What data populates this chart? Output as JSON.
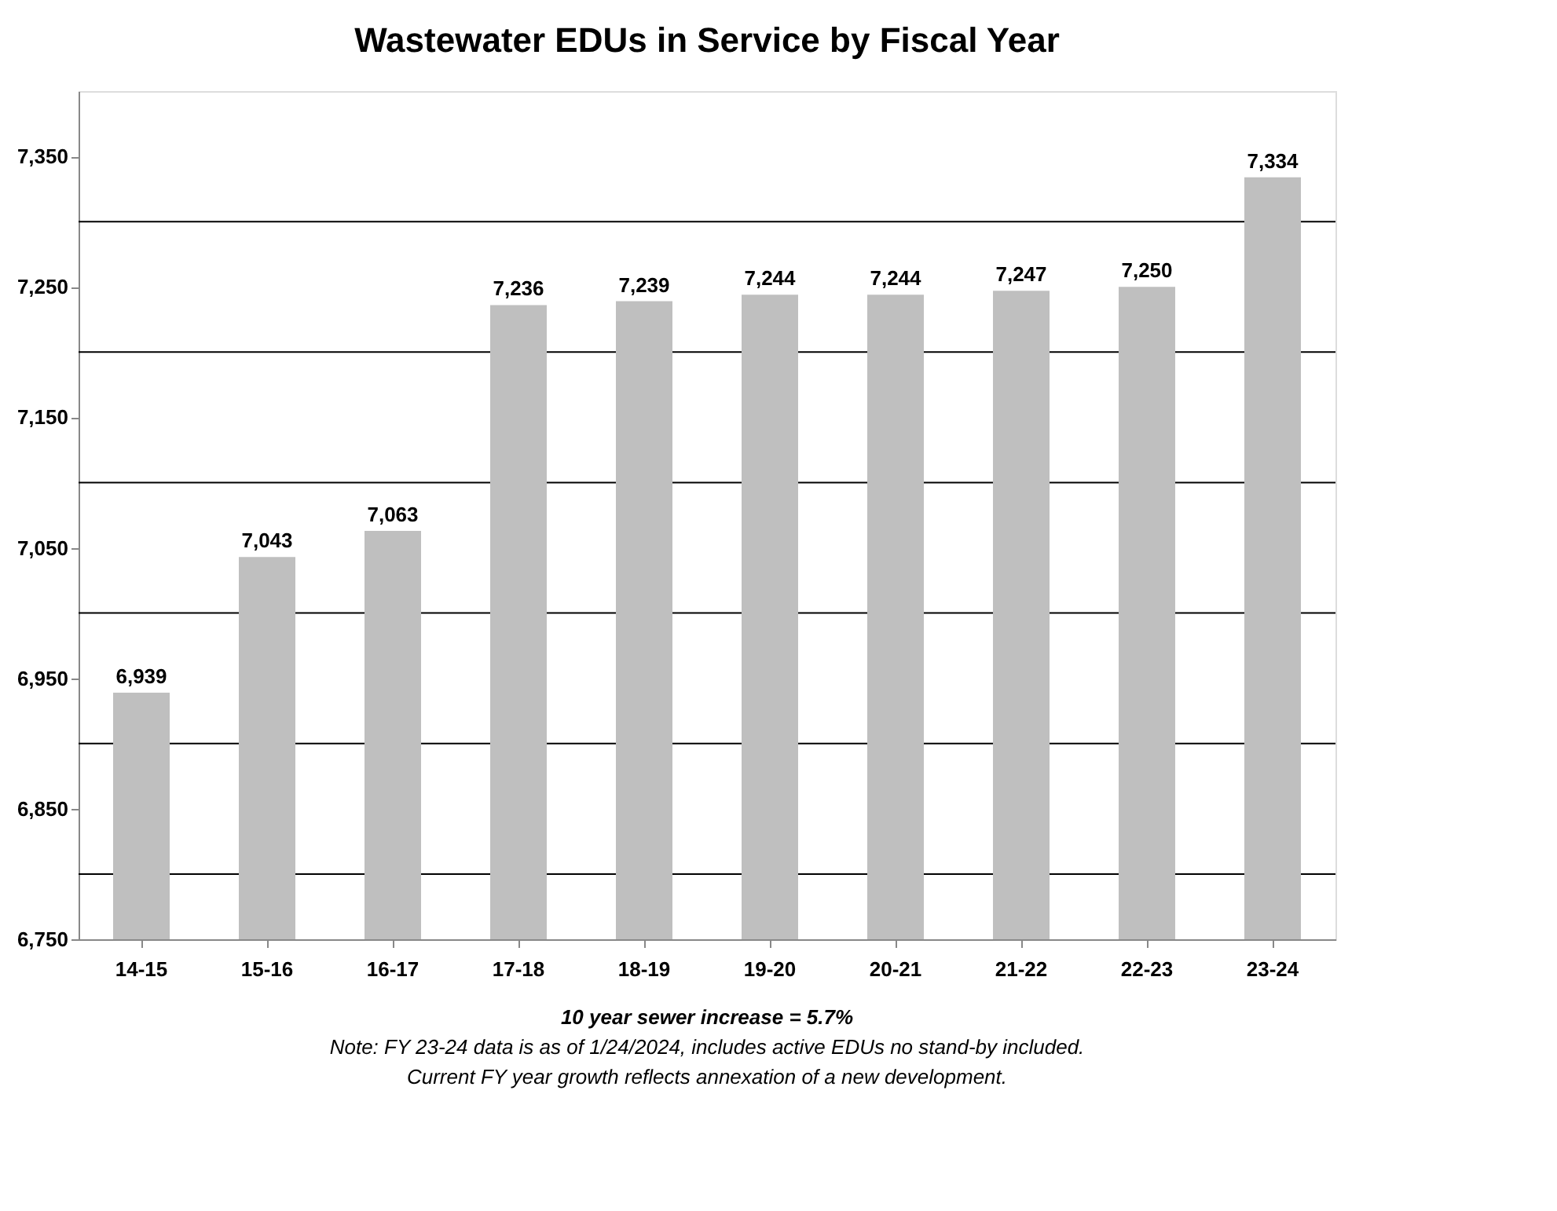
{
  "chart_data": {
    "type": "bar",
    "title": "Wastewater EDUs in Service by Fiscal Year",
    "categories": [
      "14-15",
      "15-16",
      "16-17",
      "17-18",
      "18-19",
      "19-20",
      "20-21",
      "21-22",
      "22-23",
      "23-24"
    ],
    "values": [
      6939,
      7043,
      7063,
      7236,
      7239,
      7244,
      7244,
      7247,
      7250,
      7334
    ],
    "value_labels": [
      "6,939",
      "7,043",
      "7,063",
      "7,236",
      "7,239",
      "7,244",
      "7,244",
      "7,247",
      "7,250",
      "7,334"
    ],
    "color": "#bfbfbf",
    "ylim": [
      6750,
      7400
    ],
    "yticks": [
      {
        "value": 6750,
        "label": "6,750"
      },
      {
        "value": 6800,
        "label": null
      },
      {
        "value": 6850,
        "label": "6,850"
      },
      {
        "value": 6900,
        "label": null
      },
      {
        "value": 6950,
        "label": "6,950"
      },
      {
        "value": 7000,
        "label": null
      },
      {
        "value": 7050,
        "label": "7,050"
      },
      {
        "value": 7100,
        "label": null
      },
      {
        "value": 7150,
        "label": "7,150"
      },
      {
        "value": 7200,
        "label": null
      },
      {
        "value": 7250,
        "label": "7,250"
      },
      {
        "value": 7300,
        "label": null
      },
      {
        "value": 7350,
        "label": "7,350"
      }
    ],
    "grid": "y",
    "annotations": [
      "10 year sewer increase =  5.7%",
      "Note: FY 23-24 data is as of 1/24/2024, includes active EDUs no stand-by included.",
      "Current FY year growth reflects annexation of a new development."
    ]
  }
}
